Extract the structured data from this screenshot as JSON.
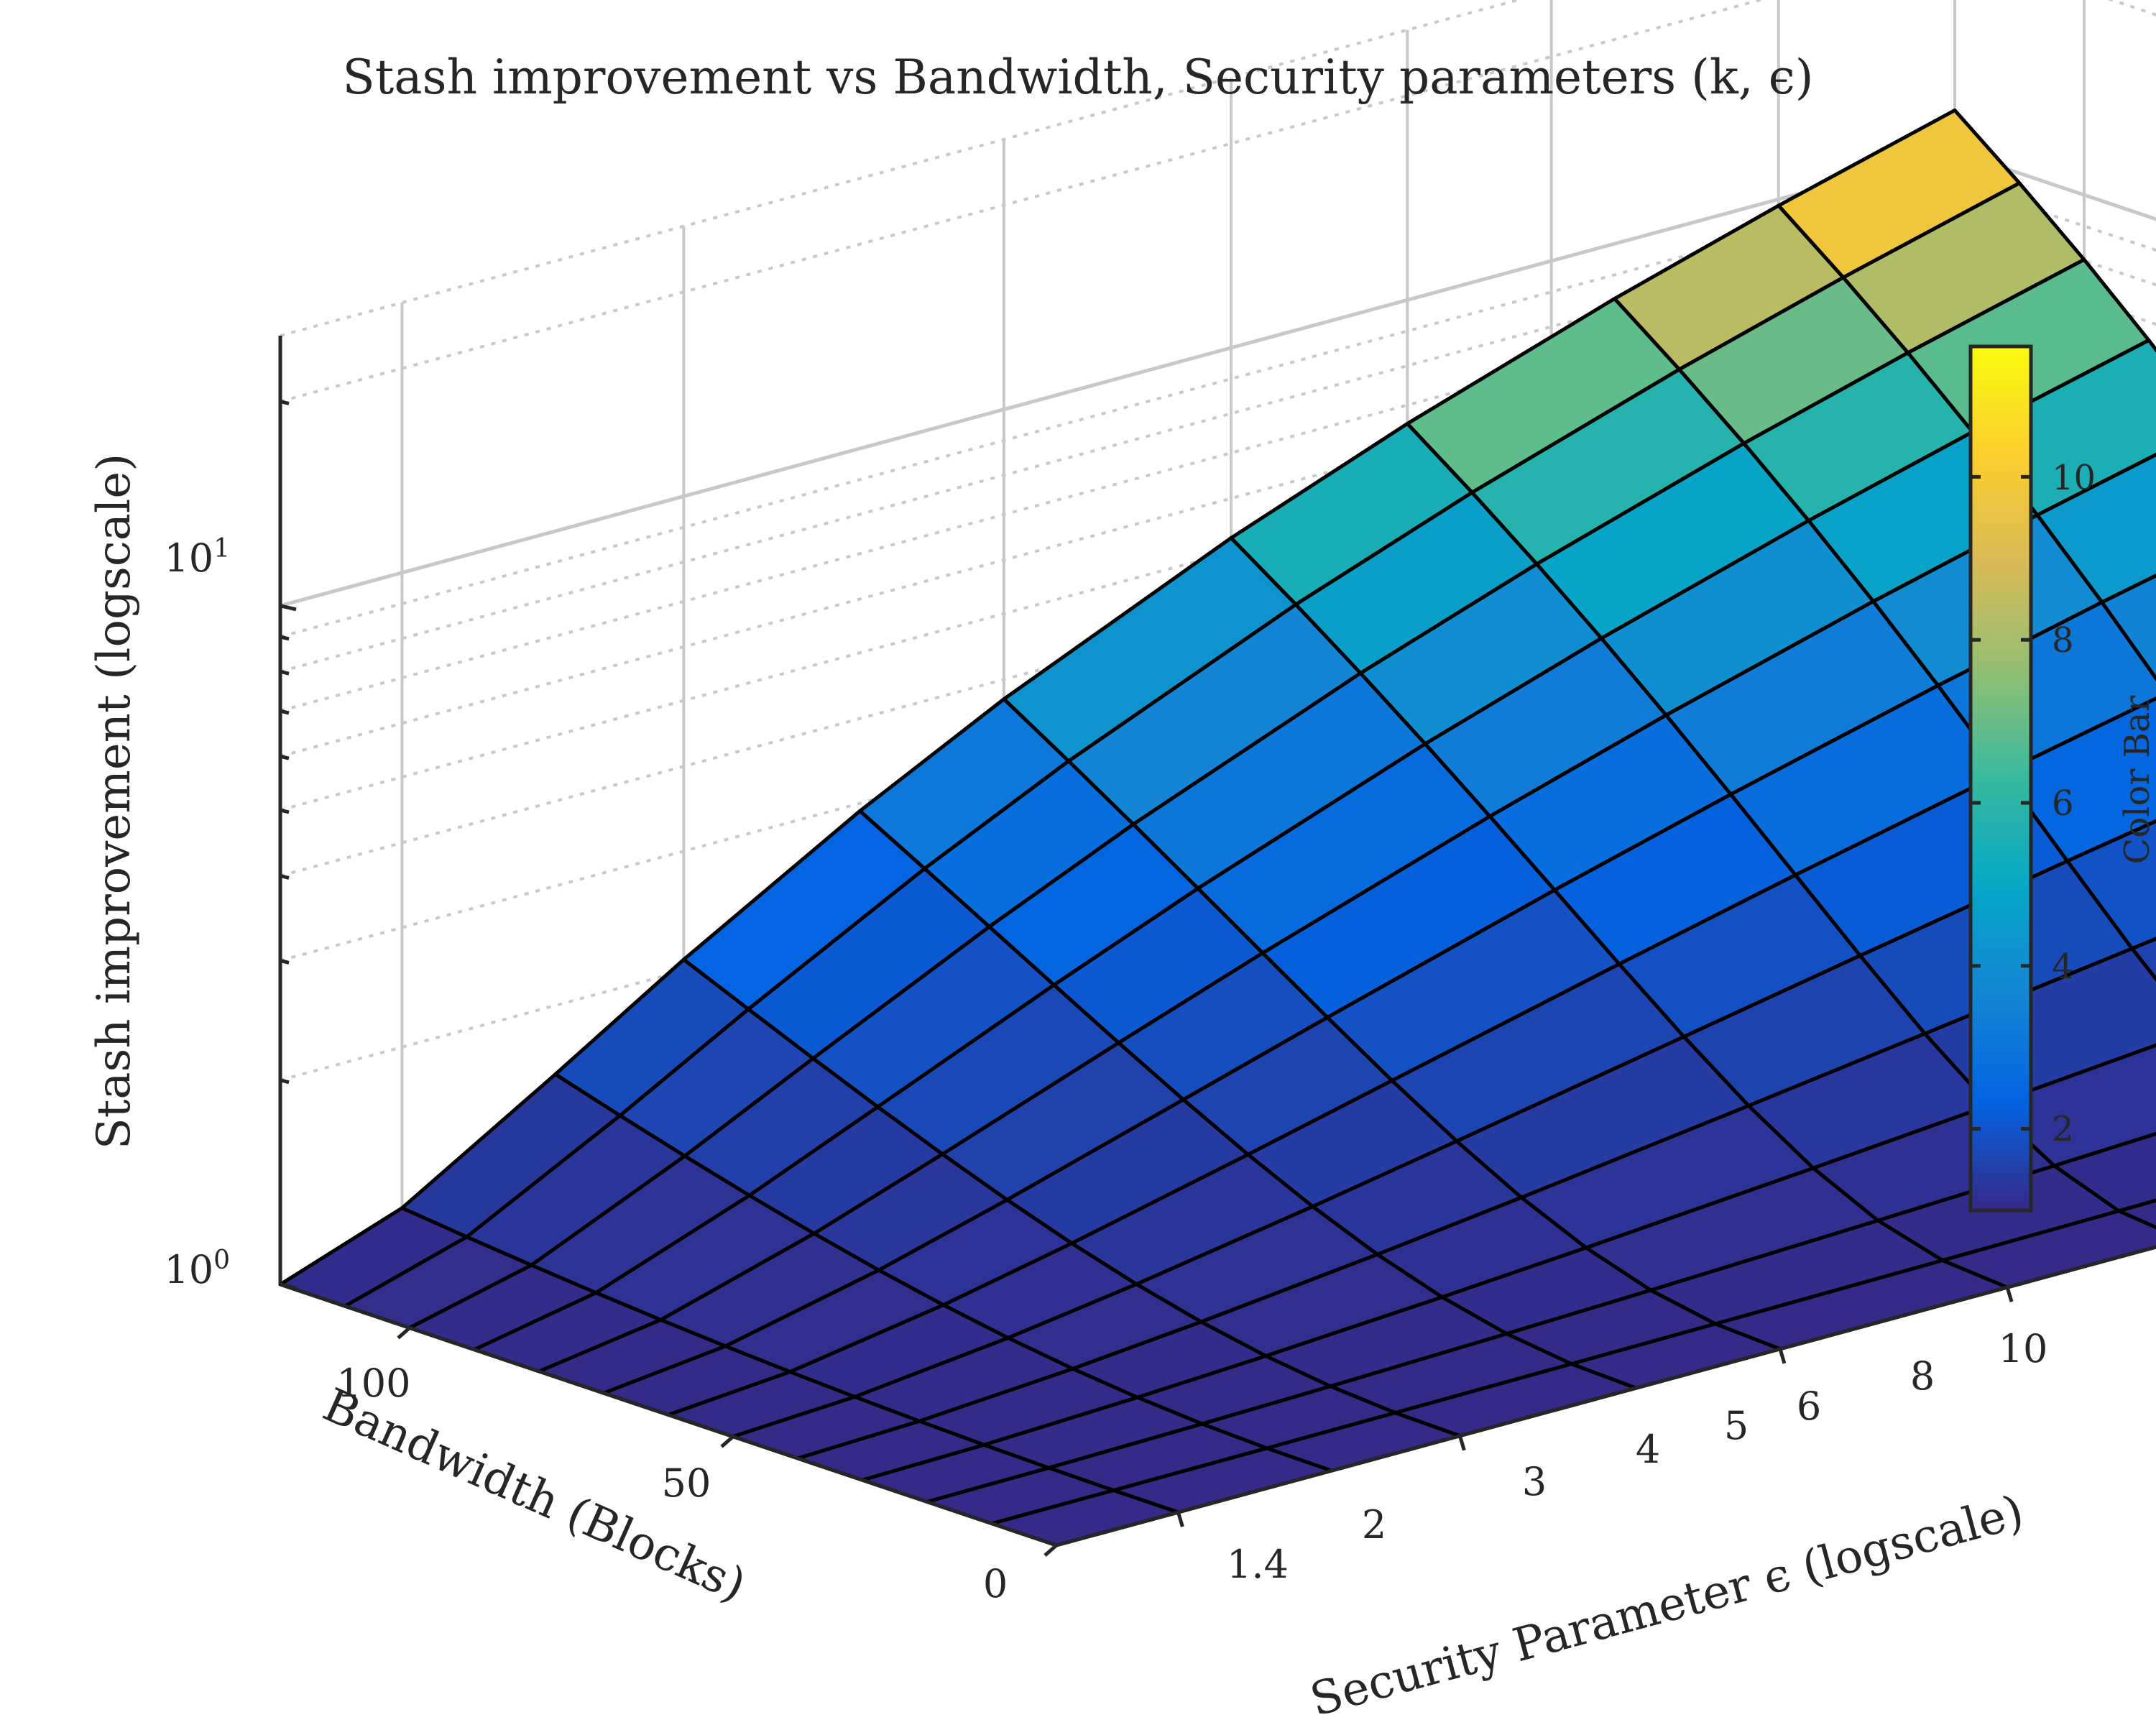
{
  "chart_data": {
    "type": "surface3d",
    "title": "Stash improvement vs Bandwidth, Security parameters (k, ϵ)",
    "xlabel": "Bandwidth (Blocks)",
    "ylabel": "Security Parameter ϵ (logscale)",
    "zlabel": "Stash improvement (logscale)",
    "x_ticks": [
      "0",
      "50",
      "100"
    ],
    "x_tick_values": [
      0,
      50,
      100
    ],
    "y_ticks": [
      "1.4",
      "2",
      "3",
      "4",
      "5",
      "6",
      "8",
      "10"
    ],
    "y_tick_values": [
      1.4,
      2,
      3,
      4,
      5,
      6,
      8,
      10
    ],
    "z_ticks": [
      "10",
      "10"
    ],
    "z_tick_exponents": [
      "0",
      "1"
    ],
    "z_tick_values": [
      1,
      10
    ],
    "xlim": [
      0,
      120
    ],
    "ylim": [
      1.2,
      10
    ],
    "zlim": [
      1,
      25
    ],
    "bandwidth": [
      0,
      10,
      20,
      30,
      40,
      50,
      60,
      70,
      80,
      90,
      100,
      110,
      120
    ],
    "epsilon": [
      1.2,
      1.4,
      1.7,
      2,
      2.5,
      3,
      4,
      5,
      6.5,
      8,
      10
    ],
    "peak": {
      "bandwidth": 120,
      "epsilon": 10,
      "value": 11.5
    },
    "colorbar": {
      "label": "Color Bar",
      "ticks": [
        "2",
        "4",
        "6",
        "8",
        "10"
      ],
      "tick_values": [
        2,
        4,
        6,
        8,
        10
      ],
      "range": [
        1,
        11.6
      ],
      "colormap": [
        "#352a87",
        "#0363e1",
        "#1485d4",
        "#06a7c6",
        "#38b99e",
        "#92bf73",
        "#d9ba56",
        "#fcce2e",
        "#f9fb0e"
      ]
    },
    "grid": true,
    "edge_color": "#000000",
    "axis_color": "#262626",
    "grid_color": "#c8c8c8"
  }
}
